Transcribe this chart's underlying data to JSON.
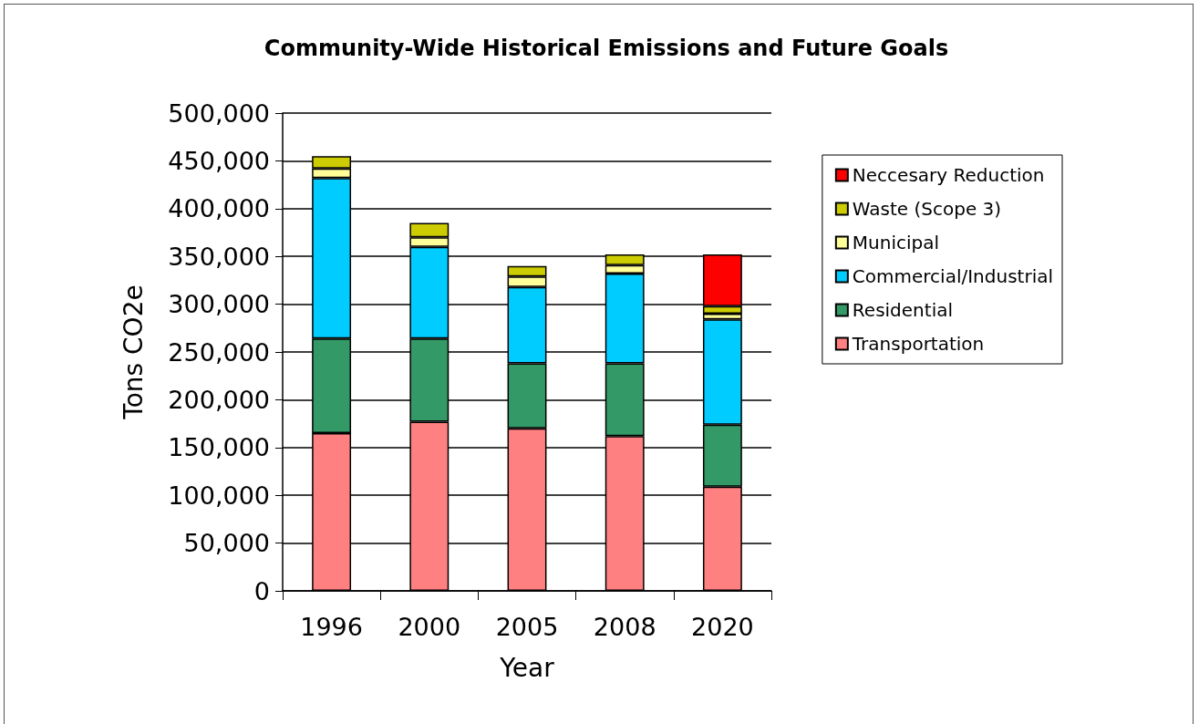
{
  "chart_data": {
    "type": "bar",
    "title": "Community-Wide Historical Emissions and Future Goals",
    "xlabel": "Year",
    "ylabel": "Tons CO2e",
    "categories": [
      "1996",
      "2000",
      "2005",
      "2008",
      "2020"
    ],
    "stacked": true,
    "ylim": [
      0,
      500000
    ],
    "yticks": [
      {
        "value": 0,
        "label": "0"
      },
      {
        "value": 50000,
        "label": "50,000"
      },
      {
        "value": 100000,
        "label": "100,000"
      },
      {
        "value": 150000,
        "label": "150,000"
      },
      {
        "value": 200000,
        "label": "200,000"
      },
      {
        "value": 250000,
        "label": "250,000"
      },
      {
        "value": 300000,
        "label": "300,000"
      },
      {
        "value": 350000,
        "label": "350,000"
      },
      {
        "value": 400000,
        "label": "400,000"
      },
      {
        "value": 450000,
        "label": "450,000"
      },
      {
        "value": 500000,
        "label": "500,000"
      }
    ],
    "grid": "y",
    "legend": "right",
    "series": [
      {
        "name": "Transportation",
        "color": "#ff8080",
        "values": [
          165000,
          177000,
          170000,
          162000,
          109000
        ]
      },
      {
        "name": "Residential",
        "color": "#339966",
        "values": [
          99000,
          87000,
          68000,
          76000,
          65000
        ]
      },
      {
        "name": "Commercial/Industrial",
        "color": "#00ccff",
        "values": [
          168000,
          96000,
          80000,
          94000,
          110000
        ]
      },
      {
        "name": "Municipal",
        "color": "#ffff99",
        "values": [
          10000,
          10000,
          11000,
          9000,
          6000
        ]
      },
      {
        "name": "Waste (Scope 3)",
        "color": "#cccc00",
        "values": [
          13000,
          15000,
          11000,
          11000,
          8000
        ]
      },
      {
        "name": "Neccesary Reduction",
        "color": "#ff0000",
        "values": [
          null,
          null,
          null,
          null,
          54000
        ]
      }
    ]
  }
}
